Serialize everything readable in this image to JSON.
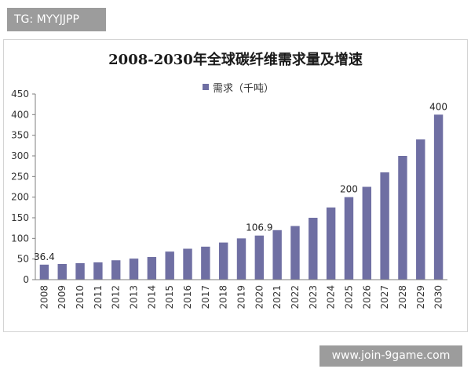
{
  "watermark_top": "TG: MYYJJPP",
  "watermark_bottom": "www.join-9game.com",
  "chart_data": {
    "type": "bar",
    "title": "2008-2030年全球碳纤维需求量及增速",
    "xlabel": "",
    "ylabel": "",
    "ylim": [
      0,
      450
    ],
    "yticks": [
      0,
      50,
      100,
      150,
      200,
      250,
      300,
      350,
      400,
      450
    ],
    "grid": false,
    "legend_position": "top-center",
    "bar_color": "#6f6fa3",
    "categories": [
      "2008",
      "2009",
      "2010",
      "2011",
      "2012",
      "2013",
      "2014",
      "2015",
      "2016",
      "2017",
      "2018",
      "2019",
      "2020",
      "2021",
      "2022",
      "2023",
      "2024",
      "2025",
      "2026",
      "2027",
      "2028",
      "2029",
      "2030"
    ],
    "series": [
      {
        "name": "需求（千吨）",
        "values": [
          36.4,
          38,
          40,
          42,
          47,
          51,
          55,
          68,
          75,
          80,
          90,
          100,
          106.9,
          120,
          130,
          150,
          175,
          200,
          225,
          260,
          300,
          340,
          400
        ]
      }
    ],
    "data_labels": [
      {
        "category": "2008",
        "text": "36.4"
      },
      {
        "category": "2020",
        "text": "106.9"
      },
      {
        "category": "2025",
        "text": "200"
      },
      {
        "category": "2030",
        "text": "400"
      }
    ]
  }
}
